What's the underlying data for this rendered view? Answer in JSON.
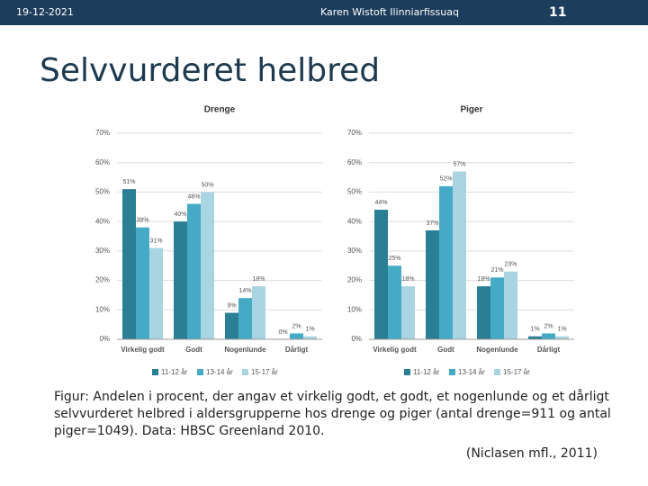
{
  "header": {
    "date": "19-12-2021",
    "author": "Karen Wistoft Ilinniarfissuaq",
    "page": "11"
  },
  "title": "Selvvurderet helbred",
  "chart_data": [
    {
      "type": "bar",
      "title": "Drenge",
      "categories": [
        "Virkelig godt",
        "Godt",
        "Nogenlunde",
        "Dårligt"
      ],
      "series": [
        {
          "name": "11-12 år",
          "color": "#2b7f94",
          "values": [
            51,
            40,
            9,
            0
          ],
          "value_labels": [
            "51%",
            "40%",
            "9%",
            "0%"
          ]
        },
        {
          "name": "13-14 år",
          "color": "#45aac6",
          "values": [
            38,
            46,
            14,
            2
          ],
          "value_labels": [
            "38%",
            "46%",
            "14%",
            "2%"
          ]
        },
        {
          "name": "15-17 år",
          "color": "#a9d4e2",
          "values": [
            31,
            50,
            18,
            1
          ],
          "value_labels": [
            "31%",
            "50%",
            "18%",
            "1%"
          ]
        }
      ],
      "ylim": [
        0,
        70
      ],
      "yticks": [
        {
          "value": 0,
          "label": "0%"
        },
        {
          "value": 10,
          "label": "10%"
        },
        {
          "value": 20,
          "label": "20%"
        },
        {
          "value": 30,
          "label": "30%"
        },
        {
          "value": 40,
          "label": "40%"
        },
        {
          "value": 50,
          "label": "50%"
        },
        {
          "value": 60,
          "label": "60%"
        },
        {
          "value": 70,
          "label": "70%"
        }
      ],
      "grid": true
    },
    {
      "type": "bar",
      "title": "Piger",
      "categories": [
        "Virkelig godt",
        "Godt",
        "Nogenlunde",
        "Dårligt"
      ],
      "series": [
        {
          "name": "11-12 år",
          "color": "#2b7f94",
          "values": [
            44,
            37,
            18,
            1
          ],
          "value_labels": [
            "44%",
            "37%",
            "18%",
            "1%"
          ]
        },
        {
          "name": "13-14 år",
          "color": "#45aac6",
          "values": [
            25,
            52,
            21,
            2
          ],
          "value_labels": [
            "25%",
            "52%",
            "21%",
            "2%"
          ]
        },
        {
          "name": "15-17 år",
          "color": "#a9d4e2",
          "values": [
            18,
            57,
            23,
            1
          ],
          "value_labels": [
            "18%",
            "57%",
            "23%",
            "1%"
          ]
        }
      ],
      "ylim": [
        0,
        70
      ],
      "yticks": [
        {
          "value": 0,
          "label": "0%"
        },
        {
          "value": 10,
          "label": "10%"
        },
        {
          "value": 20,
          "label": "20%"
        },
        {
          "value": 30,
          "label": "30%"
        },
        {
          "value": 40,
          "label": "40%"
        },
        {
          "value": 50,
          "label": "50%"
        },
        {
          "value": 60,
          "label": "60%"
        },
        {
          "value": 70,
          "label": "70%"
        }
      ],
      "grid": true
    }
  ],
  "caption": "Figur: Andelen i procent, der angav et virkelig godt, et godt, et nogenlunde og et dårligt selvvurderet helbred i aldersgrupperne hos drenge og piger (antal drenge=911 og antal piger=1049). Data: HBSC Greenland 2010.",
  "citation": "(Niclasen mfl., 2011)"
}
